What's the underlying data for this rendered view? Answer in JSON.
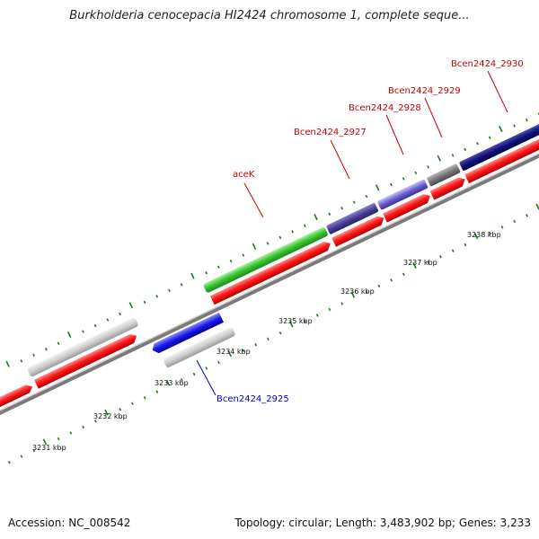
{
  "title": "Burkholderia cenocepacia HI2424 chromosome 1, complete seque...",
  "footer": {
    "accession": "Accession: NC_008542",
    "summary": "Topology: circular; Length: 3,483,902 bp; Genes: 3,233"
  },
  "colors": {
    "backbone": "#7a7a7a",
    "tick": "#1a7a1a",
    "forward_label": "#cc0000",
    "reverse_label": "#0000cc",
    "cds": "#ff1a1a"
  },
  "scale": {
    "unit": "kbp",
    "ticks": [
      {
        "pos": 3231,
        "label": "3231 kbp"
      },
      {
        "pos": 3232,
        "label": "3232 kbp"
      },
      {
        "pos": 3233,
        "label": "3233 kbp"
      },
      {
        "pos": 3234,
        "label": "3234 kbp"
      },
      {
        "pos": 3235,
        "label": "3235 kbp"
      },
      {
        "pos": 3236,
        "label": "3236 kbp"
      },
      {
        "pos": 3237,
        "label": "3237 kbp"
      },
      {
        "pos": 3238,
        "label": "3238 kbp"
      }
    ]
  },
  "labels": [
    {
      "text": "aceK",
      "strand": "forward"
    },
    {
      "text": "Bcen2424_2927",
      "strand": "forward"
    },
    {
      "text": "Bcen2424_2928",
      "strand": "forward"
    },
    {
      "text": "Bcen2424_2929",
      "strand": "forward"
    },
    {
      "text": "Bcen2424_2930",
      "strand": "forward"
    },
    {
      "text": "Bcen2424_2925",
      "strand": "reverse"
    }
  ]
}
